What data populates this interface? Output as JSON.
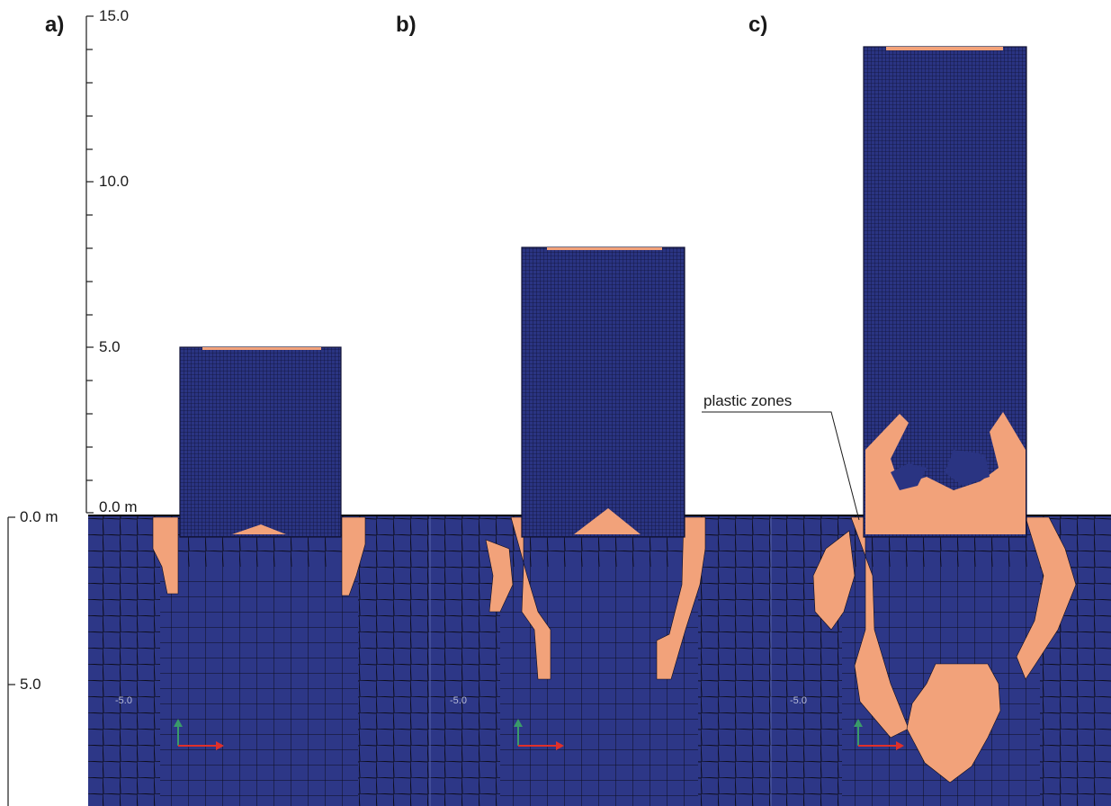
{
  "panels": [
    {
      "label": "a)",
      "inner_label": "-5.0"
    },
    {
      "label": "b)",
      "inner_label": "-5.0"
    },
    {
      "label": "c)",
      "inner_label": "-5.0"
    }
  ],
  "upper_axis": {
    "ticks": [
      {
        "text": "15.0",
        "value": 15.0
      },
      {
        "text": "10.0",
        "value": 10.0
      },
      {
        "text": "5.0",
        "value": 5.0
      },
      {
        "text": "0.0 m",
        "value": 0.0
      }
    ]
  },
  "lower_axis": {
    "ticks": [
      {
        "text": "0.0 m",
        "value": 0.0
      },
      {
        "text": "5.0",
        "value": 5.0
      }
    ]
  },
  "annotation": {
    "text": "plastic zones"
  },
  "colors": {
    "mesh_fill": "#2d3787",
    "mesh_lines": "#0d0d1e",
    "plastic": "#f2a27a",
    "axis_arrow_x": "#e0302a",
    "axis_arrow_y": "#3a9a6a"
  }
}
